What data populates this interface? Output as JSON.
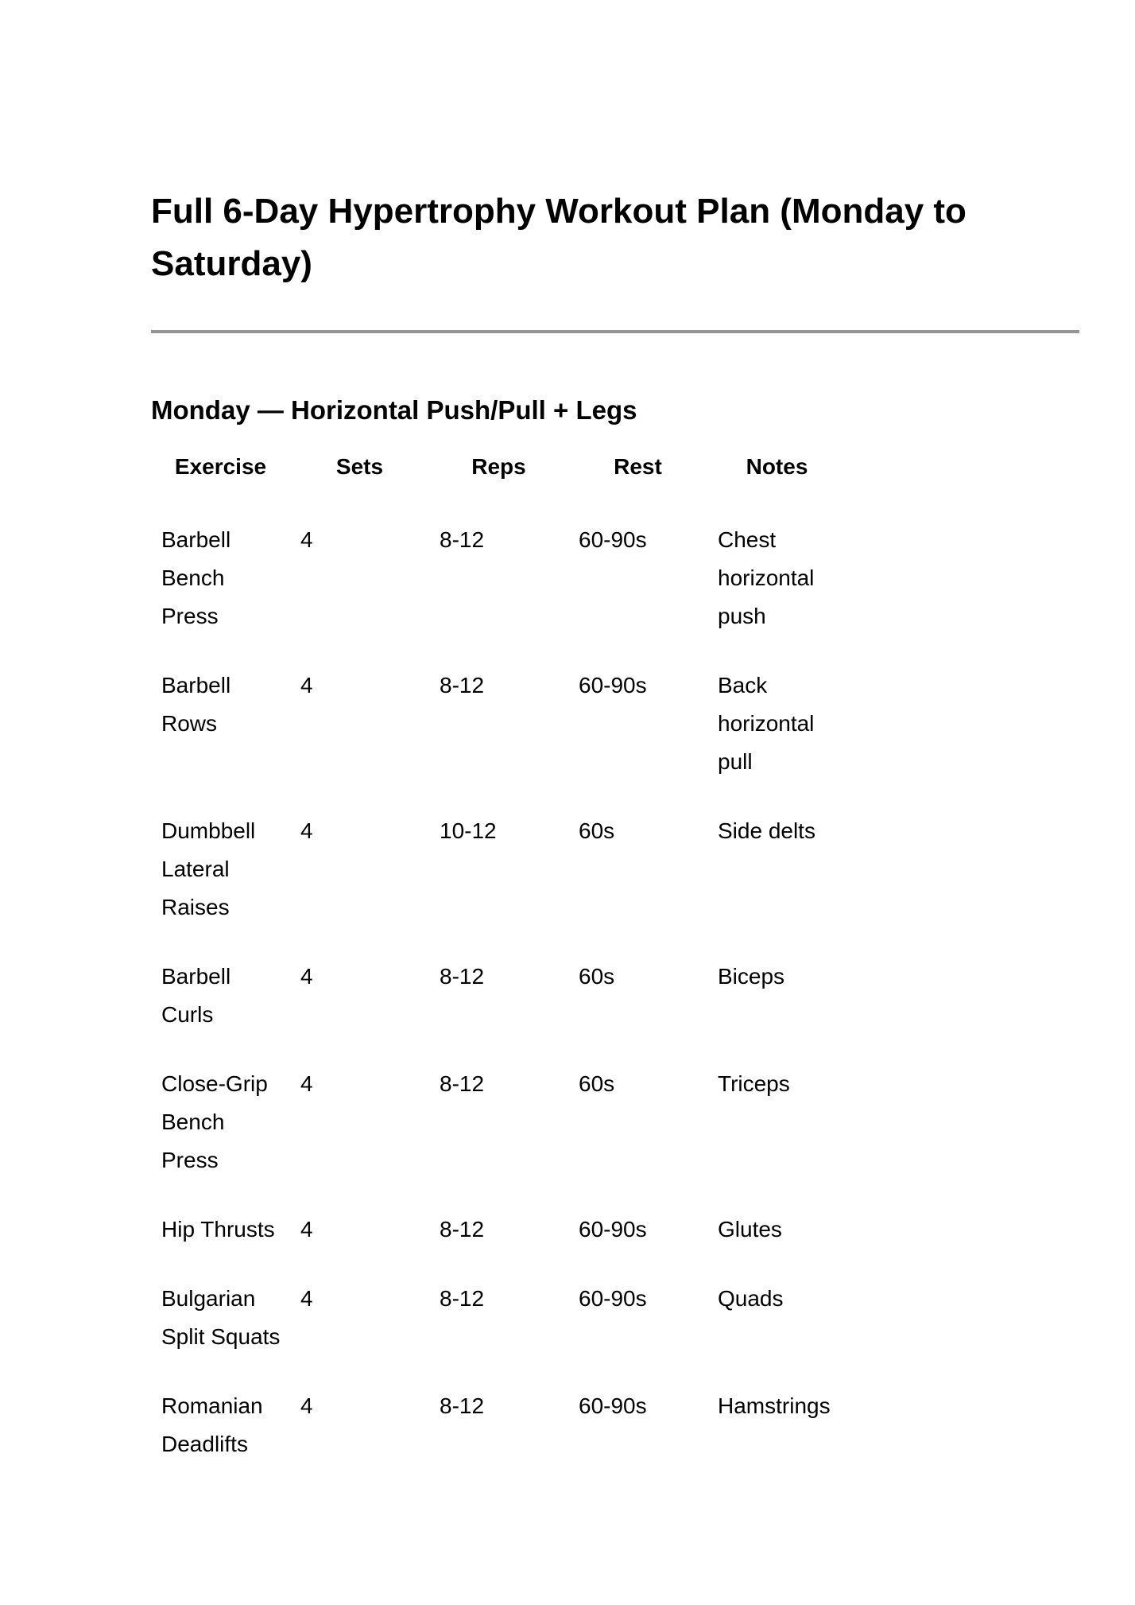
{
  "document": {
    "title": "Full 6-Day Hypertrophy Workout Plan (Monday to Saturday)",
    "section_heading": "Monday — Horizontal Push/Pull + Legs"
  },
  "table": {
    "headers": [
      "Exercise",
      "Sets",
      "Reps",
      "Rest",
      "Notes"
    ],
    "column_keys": [
      "exercise",
      "sets",
      "reps",
      "rest",
      "notes"
    ],
    "rows": [
      {
        "exercise": "Barbell Bench Press",
        "sets": "4",
        "reps": "8-12",
        "rest": "60-90s",
        "notes": "Chest horizontal push"
      },
      {
        "exercise": "Barbell Rows",
        "sets": "4",
        "reps": "8-12",
        "rest": "60-90s",
        "notes": "Back horizontal pull"
      },
      {
        "exercise": "Dumbbell Lateral Raises",
        "sets": "4",
        "reps": "10-12",
        "rest": "60s",
        "notes": "Side delts"
      },
      {
        "exercise": "Barbell Curls",
        "sets": "4",
        "reps": "8-12",
        "rest": "60s",
        "notes": "Biceps"
      },
      {
        "exercise": "Close-Grip Bench Press",
        "sets": "4",
        "reps": "8-12",
        "rest": "60s",
        "notes": "Triceps"
      },
      {
        "exercise": "Hip Thrusts",
        "sets": "4",
        "reps": "8-12",
        "rest": "60-90s",
        "notes": "Glutes"
      },
      {
        "exercise": "Bulgarian Split Squats",
        "sets": "4",
        "reps": "8-12",
        "rest": "60-90s",
        "notes": "Quads"
      },
      {
        "exercise": "Romanian Deadlifts",
        "sets": "4",
        "reps": "8-12",
        "rest": "60-90s",
        "notes": "Hamstrings"
      }
    ]
  },
  "colors": {
    "background": "#ffffff",
    "text": "#000000",
    "divider": "#969696"
  }
}
